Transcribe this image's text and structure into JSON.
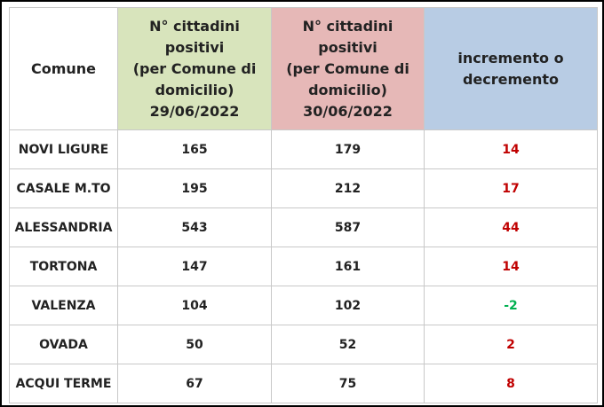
{
  "table": {
    "header": [
      [
        "Comune"
      ],
      [
        "N° cittadini",
        "positivi",
        "(per Comune di",
        "domicilio)",
        "29/06/2022"
      ],
      [
        "N° cittadini",
        "positivi",
        "(per Comune di",
        "domicilio)",
        "30/06/2022"
      ],
      [
        "incremento o",
        "decremento"
      ]
    ],
    "header_colors": [
      "#ffffff",
      "#d8e4bc",
      "#e6b8b7",
      "#b8cce4"
    ],
    "increase_color": "#c00000",
    "decrease_color": "#00b050",
    "rows": [
      [
        "NOVI LIGURE",
        165,
        179,
        14
      ],
      [
        "CASALE M.TO",
        195,
        212,
        17
      ],
      [
        "ALESSANDRIA",
        543,
        587,
        44
      ],
      [
        "TORTONA",
        147,
        161,
        14
      ],
      [
        "VALENZA",
        104,
        102,
        -2
      ],
      [
        "OVADA",
        50,
        52,
        2
      ],
      [
        "ACQUI TERME",
        67,
        75,
        8
      ]
    ]
  }
}
